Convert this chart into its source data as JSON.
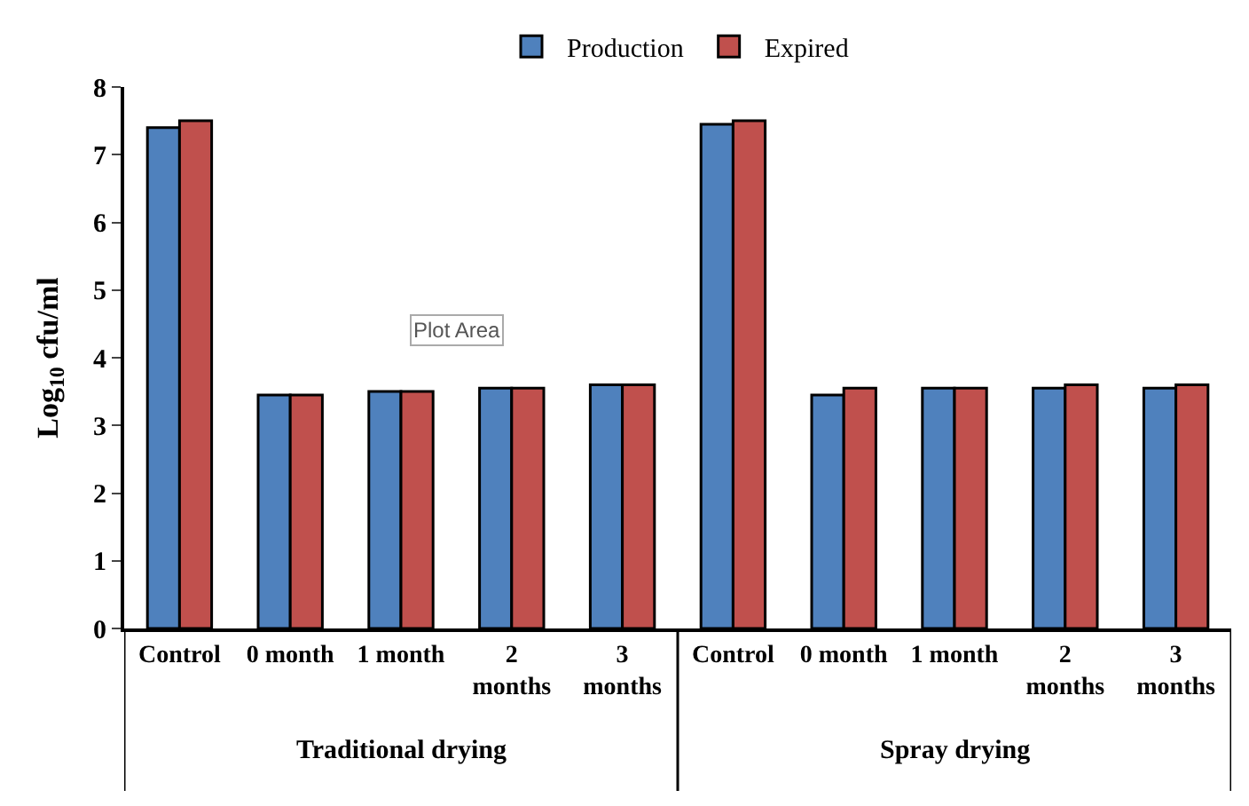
{
  "chart_data": {
    "type": "bar",
    "ylabel": "Log$_{10}$ cfu/ml",
    "categories": [
      "Control",
      "0 month",
      "1 month",
      "2 months",
      "3 months",
      "Control",
      "0 month",
      "1 month",
      "2 months",
      "3 months"
    ],
    "series": [
      {
        "name": "Production",
        "color": "#4f81bd",
        "values": [
          7.4,
          3.45,
          3.5,
          3.55,
          3.6,
          7.45,
          3.45,
          3.55,
          3.55,
          3.55
        ]
      },
      {
        "name": "Expired",
        "color": "#c0504d",
        "values": [
          7.5,
          3.45,
          3.5,
          3.55,
          3.6,
          7.5,
          3.55,
          3.55,
          3.6,
          3.6
        ]
      }
    ],
    "ylim": [
      0,
      8
    ],
    "yticks": [
      0,
      1,
      2,
      3,
      4,
      5,
      6,
      7,
      8
    ],
    "legend": "top",
    "annotations": [
      "Traditional drying",
      "Spray drying",
      "Plot Area"
    ]
  }
}
